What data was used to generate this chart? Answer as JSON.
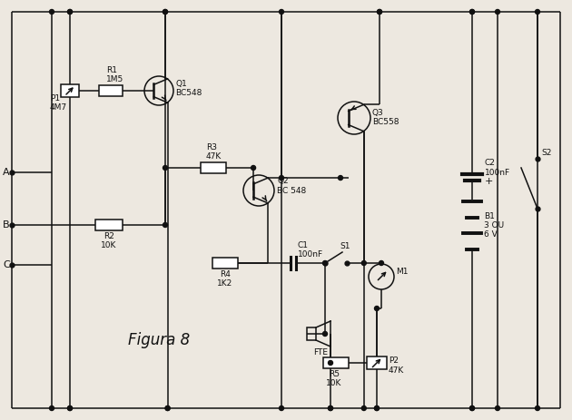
{
  "background_color": "#ede8e0",
  "line_color": "#111111",
  "lw": 1.1,
  "border": [
    12,
    12,
    618,
    451
  ],
  "figura_label": "Figura 8",
  "components": {
    "P1": "P1\n4M7",
    "R1": "R1\n1M5",
    "Q1": "Q1\nBC548",
    "R2": "R2\n10K",
    "R3": "R3\n47K",
    "Q2": "Q2\nBC 548",
    "Q3": "Q3\nBC558",
    "C1": "C1\n100nF",
    "R4": "R4\n1K2",
    "S1": "S1",
    "FTE": "FTE",
    "M1": "M1",
    "R5": "R5\n10K",
    "P2": "P2\n47K",
    "C2": "C2\n100nF",
    "B1": "B1\n3 OU\n6 V",
    "S2": "S2"
  }
}
